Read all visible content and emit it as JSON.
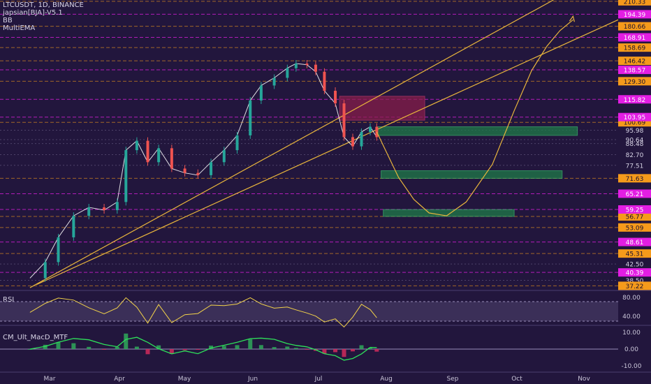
{
  "header": {
    "symbol_line": "LTCUSDT, 1D, BINANCE",
    "indicators": [
      "japsian[BJA]-V5.1",
      "BB",
      "MultiEMA"
    ]
  },
  "panes": {
    "rsi_label": "RSI",
    "macd_label": "CM_Ult_MacD_MTF"
  },
  "colors": {
    "background": "#22163d",
    "magenta": "#e31ee3",
    "orange": "#f59a1b",
    "trendline": "#e8b53c",
    "green_zone": "#1f7a48",
    "red_zone": "#8e1e4a"
  },
  "price_axis": {
    "magenta_labels": [
      "194.39",
      "168.91",
      "138.57",
      "115.82",
      "103.95",
      "65.21",
      "59.25",
      "48.61",
      "40.39"
    ],
    "orange_labels": [
      "210.33",
      "180.66",
      "158.69",
      "146.42",
      "129.30",
      "100.69",
      "71.63",
      "56.77",
      "53.09",
      "45.31",
      "37.22"
    ],
    "plain_labels": [
      "95.98",
      "90.64",
      "88.48",
      "82.70",
      "77.51",
      "42.50",
      "38.50"
    ]
  },
  "rsi_axis": [
    "80.00",
    "40.00"
  ],
  "macd_axis": [
    "10.00",
    "0.00",
    "-10.00"
  ],
  "time_axis": [
    "Mar",
    "Apr",
    "May",
    "Jun",
    "Jul",
    "Aug",
    "Sep",
    "Oct",
    "Nov"
  ],
  "chart_data": {
    "type": "line",
    "title": "LTCUSDT, 1D, BINANCE",
    "y_scale": "log",
    "y_range": [
      36.5,
      212
    ],
    "x": [
      "Mar",
      "Apr",
      "May",
      "Jun",
      "Jul",
      "Aug",
      "Sep",
      "Oct",
      "Nov"
    ],
    "series": [
      {
        "name": "LTCUSDT",
        "x": [
          "Feb 20",
          "Feb 27",
          "Mar 5",
          "Mar 12",
          "Mar 19",
          "Mar 26",
          "Apr 1",
          "Apr 5",
          "Apr 10",
          "Apr 15",
          "Apr 20",
          "Apr 26",
          "May 2",
          "May 8",
          "May 14",
          "May 20",
          "May 26",
          "Jun 1",
          "Jun 6",
          "Jun 12",
          "Jun 18",
          "Jun 22",
          "Jun 27",
          "Jul 1",
          "Jul 5",
          "Jul 10",
          "Jul 14",
          "Jul 18",
          "Jul 22",
          "Jul 26",
          "Jul 29"
        ],
        "values": [
          39,
          43,
          50,
          57,
          60,
          59,
          62,
          85,
          90,
          79,
          86,
          76,
          74,
          73,
          79,
          85,
          93,
          115,
          126,
          132,
          140,
          144,
          143,
          137,
          122,
          113,
          92,
          87,
          95,
          98,
          92
        ]
      }
    ],
    "zones": [
      {
        "color": "green",
        "from": "Jul 29",
        "to": "Oct 29",
        "low": 93,
        "high": 98
      },
      {
        "color": "green",
        "from": "Jul 31",
        "to": "Oct 22",
        "low": 71.6,
        "high": 75
      },
      {
        "color": "green",
        "from": "Aug 1",
        "to": "Sep 30",
        "low": 56.8,
        "high": 59.2
      },
      {
        "color": "red",
        "from": "Jul 12",
        "to": "Aug 20",
        "low": 102,
        "high": 118
      }
    ],
    "projection": {
      "x": [
        "Jul 29",
        "Aug 2",
        "Aug 8",
        "Aug 15",
        "Aug 22",
        "Aug 30",
        "Sep 8",
        "Sep 20",
        "Sep 30",
        "Oct 8",
        "Oct 15",
        "Oct 21",
        "Oct 27"
      ],
      "values": [
        95,
        85,
        72,
        63,
        58,
        57,
        62,
        78,
        108,
        138,
        160,
        176,
        188
      ]
    },
    "rsi": {
      "levels": [
        80,
        40
      ]
    },
    "macd": {
      "levels": [
        10,
        0,
        -10
      ]
    }
  }
}
